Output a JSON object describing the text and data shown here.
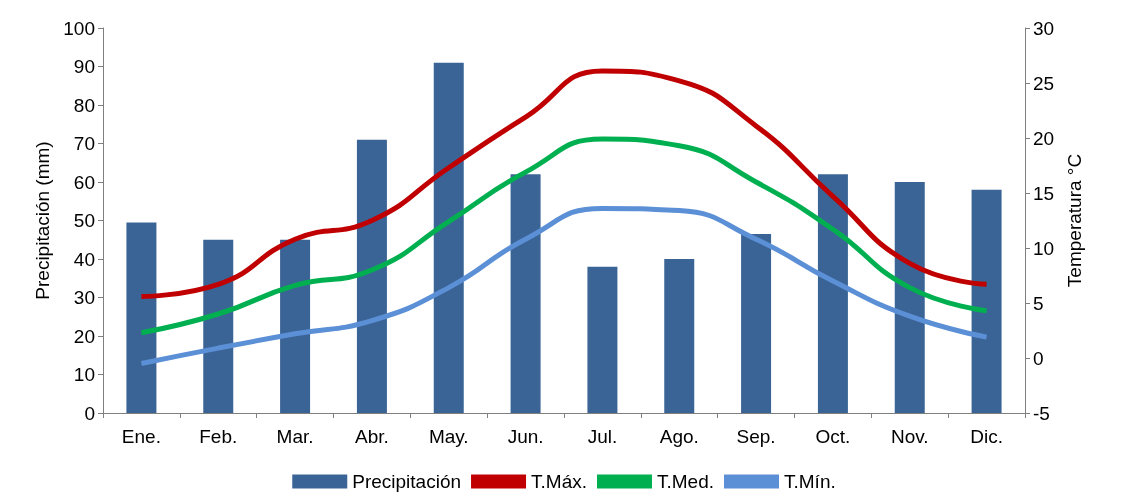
{
  "chart_data": {
    "type": "bar",
    "categories": [
      "Ene.",
      "Feb.",
      "Mar.",
      "Abr.",
      "May.",
      "Jun.",
      "Jul.",
      "Ago.",
      "Sep.",
      "Oct.",
      "Nov.",
      "Dic."
    ],
    "ylabel": "Precipitación (mm)",
    "y2label": "Temperatura °C",
    "ylim": [
      0,
      100
    ],
    "yticks": [
      0,
      10,
      20,
      30,
      40,
      50,
      60,
      70,
      80,
      90,
      100
    ],
    "y2lim": [
      -5,
      30
    ],
    "y2ticks": [
      -5,
      0,
      5,
      10,
      15,
      20,
      25,
      30
    ],
    "grid": false,
    "legend": "bottom",
    "marker": "none",
    "line_style": "solid",
    "series": [
      {
        "name": "Precipitación",
        "color": "#3b6496",
        "values": [
          49.5,
          45,
          45,
          71,
          91,
          62,
          38,
          40,
          46.5,
          62,
          60,
          58
        ]
      },
      {
        "name": "T.Máx.",
        "type": "line",
        "axis": "y2",
        "color": "#c00000",
        "values": [
          5.6,
          6.7,
          10.8,
          12.5,
          17.3,
          21.9,
          26.1,
          25.2,
          21.1,
          14.7,
          8.6,
          6.7
        ]
      },
      {
        "name": "T.Med.",
        "type": "line",
        "axis": "y2",
        "color": "#00b050",
        "values": [
          2.3,
          4.0,
          6.6,
          8.0,
          12.4,
          16.9,
          19.9,
          19.3,
          16.0,
          11.7,
          6.4,
          4.3
        ]
      },
      {
        "name": "T.Mín.",
        "type": "line",
        "axis": "y2",
        "color": "#5b8fd6",
        "values": [
          -0.5,
          0.9,
          2.2,
          3.4,
          6.4,
          10.8,
          13.6,
          13.4,
          10.8,
          7.0,
          3.8,
          1.9
        ]
      }
    ]
  }
}
